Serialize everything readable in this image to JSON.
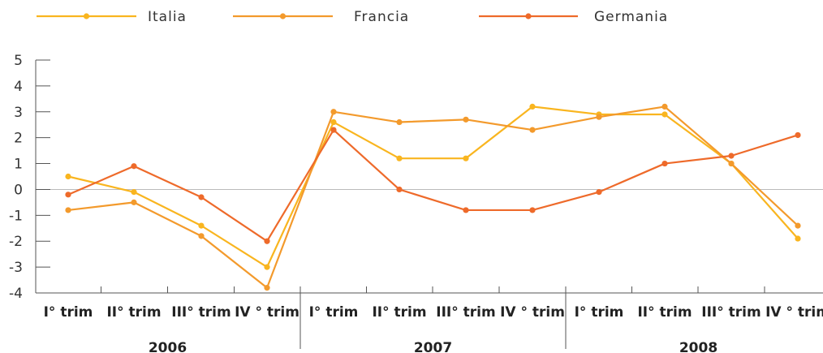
{
  "chart_data": {
    "type": "line",
    "title": "",
    "xlabel": "",
    "ylabel": "",
    "ylim": [
      -4,
      5
    ],
    "yticks": [
      5,
      4,
      3,
      2,
      1,
      0,
      -1,
      -2,
      -3,
      -4
    ],
    "categories": [
      "I° trim",
      "II° trim",
      "III° trim",
      "IV ° trim",
      "I° trim",
      "II° trim",
      "III° trim",
      "IV ° trim",
      "I° trim",
      "II° trim",
      "III° trim",
      "IV ° trim"
    ],
    "years": [
      "2006",
      "2007",
      "2008"
    ],
    "grid": false,
    "legend_position": "top",
    "series": [
      {
        "name": "Italia",
        "color": "#f9b51f",
        "values": [
          0.5,
          -0.1,
          -1.4,
          -3.0,
          2.6,
          1.2,
          1.2,
          3.2,
          2.9,
          2.9,
          1.0,
          -1.9
        ]
      },
      {
        "name": "Francia",
        "color": "#f39a2c",
        "values": [
          -0.8,
          -0.5,
          -1.8,
          -3.8,
          3.0,
          2.6,
          2.7,
          2.3,
          2.8,
          3.2,
          1.0,
          -1.4
        ]
      },
      {
        "name": "Germania",
        "color": "#ee6a2a",
        "values": [
          -0.2,
          0.9,
          -0.3,
          -2.0,
          2.3,
          0.0,
          -0.8,
          -0.8,
          -0.1,
          1.0,
          1.3,
          2.1
        ]
      }
    ]
  }
}
